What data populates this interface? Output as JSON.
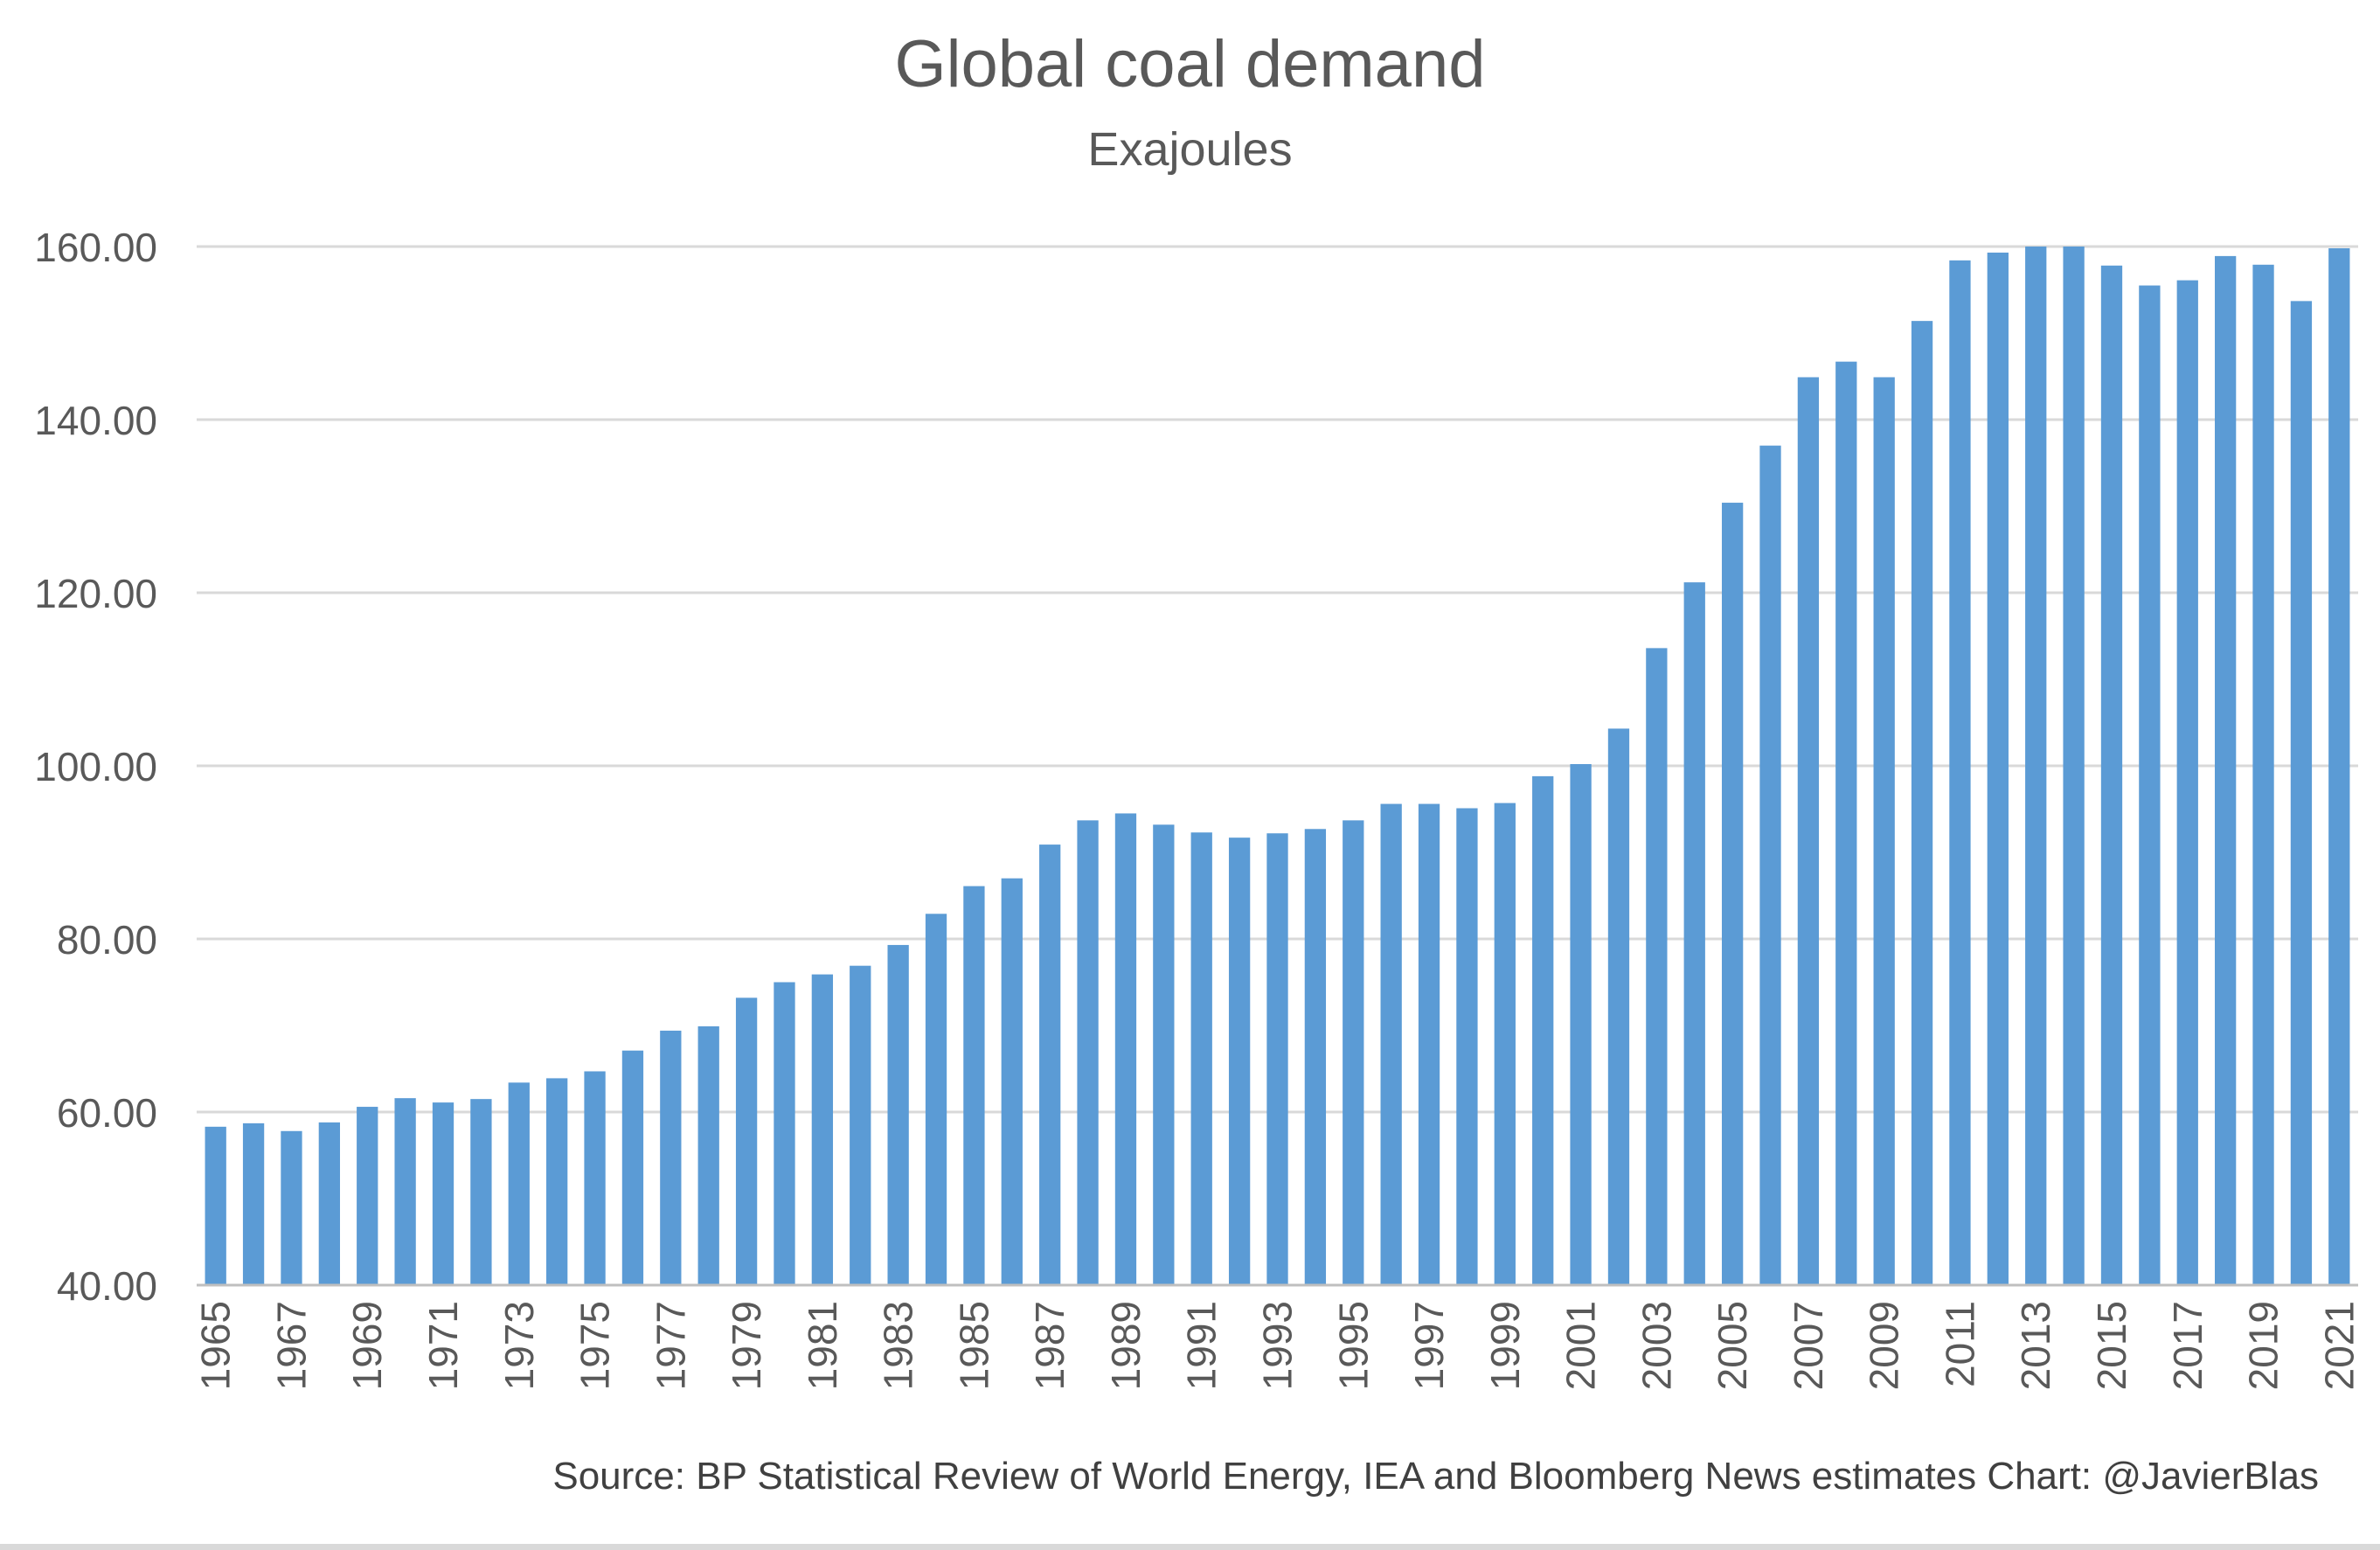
{
  "chart_data": {
    "type": "bar",
    "title": "Global coal demand",
    "subtitle": "Exajoules",
    "source": "Source: BP Statistical Review of World Energy, IEA and Bloomberg News estimates   Chart: @JavierBlas",
    "ylim": [
      40,
      160
    ],
    "yticks": [
      "40.00",
      "60.00",
      "80.00",
      "100.00",
      "120.00",
      "140.00",
      "160.00"
    ],
    "grid": true,
    "legend": "none",
    "bar_color": "#5b9bd5",
    "categories": [
      1965,
      1966,
      1967,
      1968,
      1969,
      1970,
      1971,
      1972,
      1973,
      1974,
      1975,
      1976,
      1977,
      1978,
      1979,
      1980,
      1981,
      1982,
      1983,
      1984,
      1985,
      1986,
      1987,
      1988,
      1989,
      1990,
      1991,
      1992,
      1993,
      1994,
      1995,
      1996,
      1997,
      1998,
      1999,
      2000,
      2001,
      2002,
      2003,
      2004,
      2005,
      2006,
      2007,
      2008,
      2009,
      2010,
      2011,
      2012,
      2013,
      2014,
      2015,
      2016,
      2017,
      2018,
      2019,
      2020,
      2021
    ],
    "tick_labels": [
      "1965",
      "1967",
      "1969",
      "1971",
      "1973",
      "1975",
      "1977",
      "1979",
      "1981",
      "1983",
      "1985",
      "1987",
      "1989",
      "1991",
      "1993",
      "1995",
      "1997",
      "1999",
      "2001",
      "2003",
      "2005",
      "2007",
      "2009",
      "2011",
      "2013",
      "2015",
      "2017",
      "2019",
      "2021"
    ],
    "values": [
      58.3,
      58.7,
      57.8,
      58.8,
      60.6,
      61.6,
      61.1,
      61.5,
      63.4,
      63.9,
      64.7,
      67.1,
      69.4,
      69.9,
      73.2,
      75.0,
      75.9,
      76.9,
      79.3,
      82.9,
      86.1,
      87.0,
      90.9,
      93.7,
      94.5,
      93.2,
      92.3,
      91.7,
      92.2,
      92.7,
      93.7,
      95.6,
      95.6,
      95.1,
      95.7,
      98.8,
      100.2,
      104.3,
      113.6,
      121.2,
      130.4,
      137.0,
      144.9,
      146.7,
      144.9,
      151.4,
      158.4,
      159.3,
      162.1,
      162.0,
      157.8,
      155.5,
      156.1,
      158.9,
      157.9,
      153.7,
      159.8
    ]
  }
}
